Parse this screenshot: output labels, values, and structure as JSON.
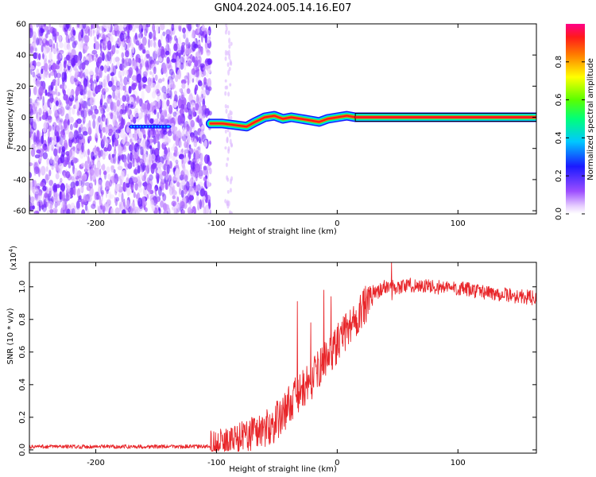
{
  "chart_data": [
    {
      "type": "heatmap",
      "title": "GN04.2024.005.14.16.E07",
      "xlabel": "Height of straight line (km)",
      "ylabel": "Frequency (Hz)",
      "xlim": [
        -255,
        165
      ],
      "ylim": [
        -62,
        60
      ],
      "xticks": [
        -200,
        -100,
        0,
        100
      ],
      "yticks": [
        -60,
        -40,
        -20,
        0,
        20,
        40,
        60
      ],
      "colorbar": {
        "label": "Normalized spectral amplitude",
        "range": [
          0,
          1
        ],
        "ticks": [
          0.0,
          0.2,
          0.4,
          0.6,
          0.8
        ]
      },
      "signal_track": [
        {
          "x": -105,
          "y": -4
        },
        {
          "x": -95,
          "y": -4
        },
        {
          "x": -85,
          "y": -5
        },
        {
          "x": -75,
          "y": -6
        },
        {
          "x": -68,
          "y": -3
        },
        {
          "x": -60,
          "y": 0
        },
        {
          "x": -52,
          "y": 1
        },
        {
          "x": -45,
          "y": -1
        },
        {
          "x": -38,
          "y": 0
        },
        {
          "x": -30,
          "y": -1
        },
        {
          "x": -22,
          "y": -2
        },
        {
          "x": -15,
          "y": -3
        },
        {
          "x": -8,
          "y": -1
        },
        {
          "x": 0,
          "y": 0
        },
        {
          "x": 8,
          "y": 1
        },
        {
          "x": 15,
          "y": 0
        },
        {
          "x": 165,
          "y": 0
        }
      ],
      "noise_region_x": [
        -255,
        -105
      ],
      "weak_trace": {
        "x": [
          -170,
          -140
        ],
        "y": -6
      }
    },
    {
      "type": "line",
      "xlabel": "Height of straight line (km)",
      "ylabel": "SNR (10 * v/v)",
      "y_multiplier": "(x10",
      "y_multiplier_exp": "4",
      "y_multiplier_close": ")",
      "xlim": [
        -255,
        165
      ],
      "ylim": [
        -0.02,
        1.15
      ],
      "xticks": [
        -200,
        -100,
        0,
        100
      ],
      "yticks": [
        0.0,
        0.2,
        0.4,
        0.6,
        0.8,
        1.0
      ],
      "series": [
        {
          "color": "#e8262a",
          "x": [
            -255,
            -200,
            -150,
            -110,
            -95,
            -85,
            -75,
            -65,
            -55,
            -45,
            -38,
            -30,
            -25,
            -20,
            -15,
            -10,
            -5,
            0,
            5,
            10,
            15,
            20,
            25,
            30,
            35,
            40,
            50,
            60,
            80,
            100,
            120,
            140,
            165
          ],
          "y": [
            0.02,
            0.02,
            0.02,
            0.02,
            0.04,
            0.07,
            0.1,
            0.12,
            0.14,
            0.22,
            0.3,
            0.36,
            0.4,
            0.44,
            0.5,
            0.56,
            0.6,
            0.65,
            0.7,
            0.76,
            0.8,
            0.85,
            0.9,
            0.95,
            0.98,
            1.0,
            1.0,
            1.01,
            1.0,
            0.99,
            0.97,
            0.95,
            0.93
          ]
        }
      ],
      "spikes": [
        {
          "x": -33,
          "y": 0.91
        },
        {
          "x": -22,
          "y": 0.78
        },
        {
          "x": -11,
          "y": 0.98
        },
        {
          "x": -5,
          "y": 0.94
        },
        {
          "x": 45,
          "y": 1.15
        }
      ]
    }
  ],
  "colors": {
    "line": "#e8262a",
    "axes": "#000000"
  }
}
